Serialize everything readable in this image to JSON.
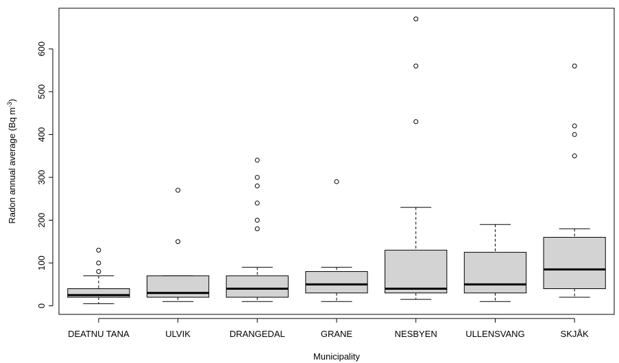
{
  "chart_data": {
    "type": "boxplot",
    "xlabel": "Municipality",
    "ylabel": "Radon annual average (Bq m",
    "ylabel_superscript": "-3",
    "ylabel_suffix": ")",
    "ylim": [
      -20,
      695
    ],
    "yticks": [
      0,
      100,
      200,
      300,
      400,
      500,
      600
    ],
    "colors": {
      "box_fill": "#d3d3d3",
      "stroke": "#000000",
      "background": "#ffffff"
    },
    "categories": [
      "DEATNU TANA",
      "ULVIK",
      "DRANGEDAL",
      "GRANE",
      "NESBYEN",
      "ULLENSVANG",
      "SKJÅK"
    ],
    "boxes": [
      {
        "category": "DEATNU TANA",
        "whisker_low": 5,
        "q1": 20,
        "median": 25,
        "q3": 40,
        "whisker_high": 70,
        "outliers": [
          80,
          100,
          130
        ]
      },
      {
        "category": "ULVIK",
        "whisker_low": 10,
        "q1": 20,
        "median": 30,
        "q3": 70,
        "whisker_high": 70,
        "outliers": [
          150,
          270
        ]
      },
      {
        "category": "DRANGEDAL",
        "whisker_low": 10,
        "q1": 20,
        "median": 40,
        "q3": 70,
        "whisker_high": 90,
        "outliers": [
          180,
          200,
          240,
          280,
          300,
          340
        ]
      },
      {
        "category": "GRANE",
        "whisker_low": 10,
        "q1": 30,
        "median": 50,
        "q3": 80,
        "whisker_high": 90,
        "outliers": [
          290
        ]
      },
      {
        "category": "NESBYEN",
        "whisker_low": 15,
        "q1": 30,
        "median": 40,
        "q3": 130,
        "whisker_high": 230,
        "outliers": [
          430,
          560,
          670
        ]
      },
      {
        "category": "ULLENSVANG",
        "whisker_low": 10,
        "q1": 30,
        "median": 50,
        "q3": 125,
        "whisker_high": 190,
        "outliers": []
      },
      {
        "category": "SKJÅK",
        "whisker_low": 20,
        "q1": 40,
        "median": 85,
        "q3": 160,
        "whisker_high": 180,
        "outliers": [
          350,
          400,
          420,
          560
        ]
      }
    ]
  }
}
